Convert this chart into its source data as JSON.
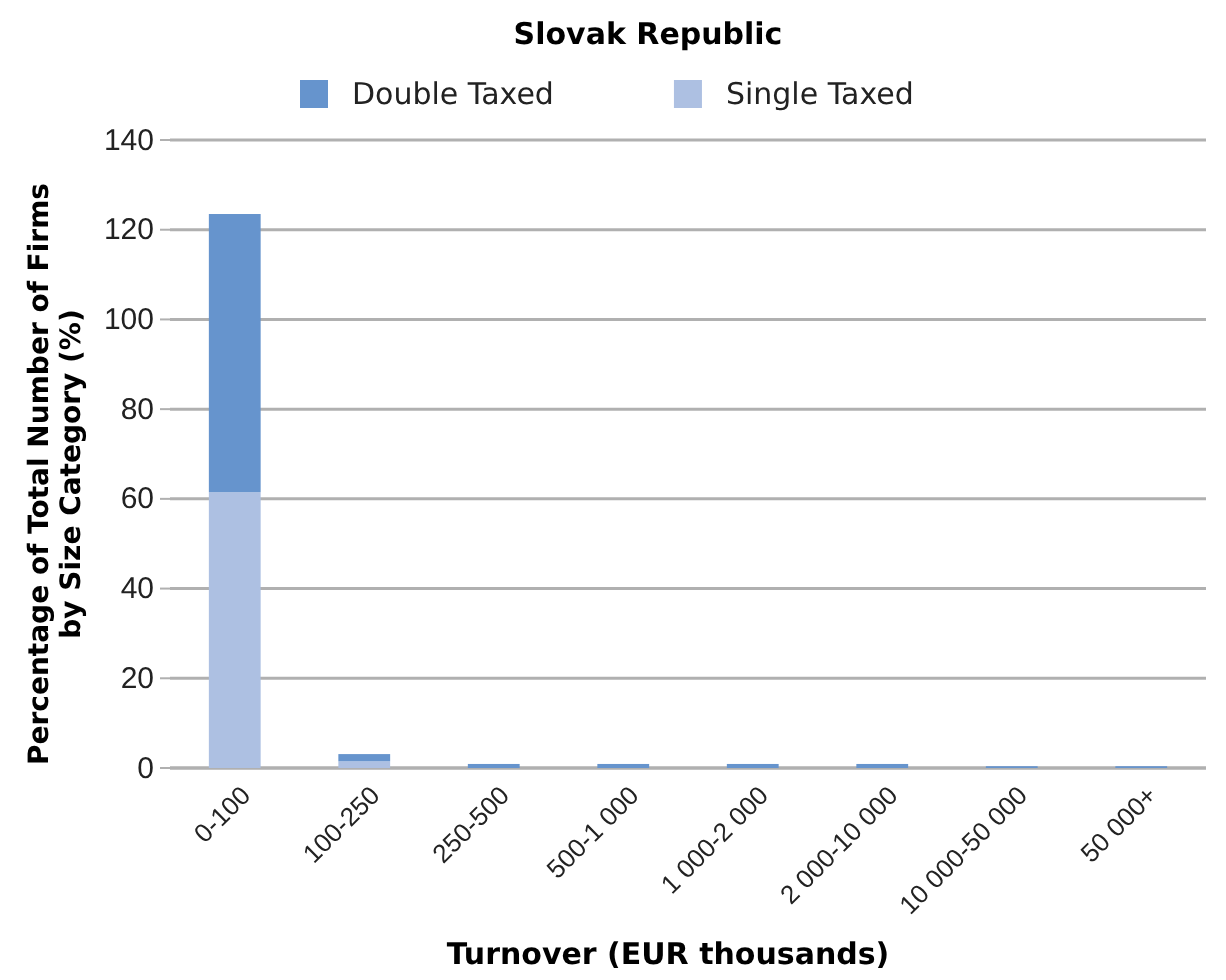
{
  "chart_data": {
    "type": "bar",
    "title": "Slovak Republic",
    "xlabel": "Turnover (EUR thousands)",
    "ylabel": "Percentage of Total Number of Firms by Size Category (%)",
    "categories": [
      "0-100",
      "100-250",
      "250-500",
      "500-1 000",
      "1 000-2 000",
      "2 000-10 000",
      "10 000-50 000",
      "50 000+"
    ],
    "stacked": true,
    "series": [
      {
        "name": "Single Taxed",
        "color": "#adc0e2",
        "values": [
          61.5,
          1.5,
          0,
          0,
          0,
          0,
          0,
          0
        ]
      },
      {
        "name": "Double Taxed",
        "color": "#6694cd",
        "values": [
          62,
          1.6,
          0.9,
          0.9,
          0.9,
          0.9,
          0.4,
          0.4
        ]
      }
    ],
    "ylim": [
      0,
      140
    ],
    "yticks": [
      0,
      20,
      40,
      60,
      80,
      100,
      120,
      140
    ],
    "grid": "y",
    "legend": "top"
  }
}
